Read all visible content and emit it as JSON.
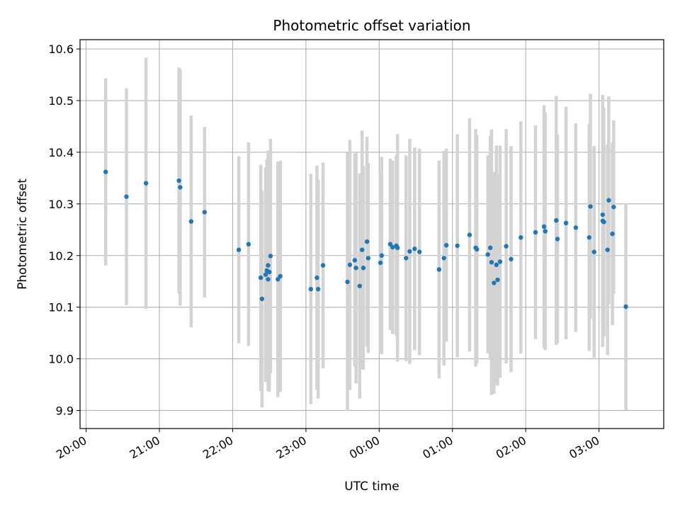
{
  "chart_data": {
    "type": "scatter",
    "title": "Photometric offset variation",
    "xlabel": "UTC time",
    "ylabel": "Photometric offset",
    "x_axis_type": "time",
    "xlim": [
      "2000-01-01T19:55",
      "2000-01-02T03:53"
    ],
    "ylim": [
      9.865,
      10.618
    ],
    "x_ticks": [
      "20:00",
      "21:00",
      "22:00",
      "23:00",
      "00:00",
      "01:00",
      "02:00",
      "03:00"
    ],
    "y_ticks": [
      "9.9",
      "10.0",
      "10.1",
      "10.2",
      "10.3",
      "10.4",
      "10.5",
      "10.6"
    ],
    "grid": true,
    "colors": {
      "points": "#1f77b4",
      "errorbars": "#d3d3d3",
      "grid": "#b0b0b0"
    },
    "series": [
      {
        "x": [
          "20:16",
          "20:33",
          "20:49",
          "21:16",
          "21:17",
          "21:26",
          "21:37",
          "22:05",
          "22:13",
          "22:23",
          "22:24",
          "22:27",
          "22:28",
          "22:29",
          "22:29",
          "22:30",
          "22:31",
          "22:37",
          "22:39",
          "23:04",
          "23:09",
          "23:10",
          "23:14",
          "23:34",
          "23:36",
          "23:40",
          "23:41",
          "23:44",
          "23:46",
          "23:47",
          "23:50",
          "23:51",
          "24:01",
          "24:02",
          "24:09",
          "24:11",
          "24:14",
          "24:15",
          "24:22",
          "24:25",
          "24:29",
          "24:33",
          "24:49",
          "24:53",
          "24:55",
          "25:04",
          "25:14",
          "25:19",
          "25:20",
          "25:29",
          "25:31",
          "25:32",
          "25:34",
          "25:36",
          "25:37",
          "25:39",
          "25:44",
          "25:48",
          "25:56",
          "26:08",
          "26:15",
          "26:16",
          "26:25",
          "26:26",
          "26:33",
          "26:41",
          "26:52",
          "26:53",
          "26:56",
          "27:03",
          "27:03",
          "27:04",
          "27:07",
          "27:08",
          "27:11",
          "27:12",
          "27:22"
        ],
        "y": [
          10.362,
          10.314,
          10.34,
          10.345,
          10.332,
          10.266,
          10.284,
          10.211,
          10.222,
          10.157,
          10.116,
          10.163,
          10.171,
          10.181,
          10.154,
          10.168,
          10.199,
          10.154,
          10.16,
          10.135,
          10.157,
          10.135,
          10.181,
          10.149,
          10.182,
          10.191,
          10.176,
          10.141,
          10.211,
          10.176,
          10.227,
          10.195,
          10.186,
          10.2,
          10.222,
          10.216,
          10.219,
          10.215,
          10.195,
          10.208,
          10.213,
          10.207,
          10.173,
          10.195,
          10.22,
          10.219,
          10.24,
          10.215,
          10.212,
          10.202,
          10.215,
          10.187,
          10.147,
          10.182,
          10.153,
          10.188,
          10.218,
          10.193,
          10.235,
          10.245,
          10.256,
          10.247,
          10.268,
          10.232,
          10.263,
          10.254,
          10.235,
          10.295,
          10.207,
          10.279,
          10.267,
          10.265,
          10.211,
          10.307,
          10.242,
          10.294,
          10.101
        ],
        "yerr": [
          0.181,
          0.21,
          0.243,
          0.219,
          0.229,
          0.205,
          0.165,
          0.181,
          0.197,
          0.219,
          0.21,
          0.208,
          0.215,
          0.222,
          0.216,
          0.232,
          0.227,
          0.228,
          0.224,
          0.223,
          0.217,
          0.212,
          0.199,
          0.25,
          0.242,
          0.206,
          0.224,
          0.218,
          0.231,
          0.197,
          0.203,
          0.184,
          0.173,
          0.191,
          0.166,
          0.168,
          0.175,
          0.22,
          0.199,
          0.218,
          0.196,
          0.2,
          0.211,
          0.208,
          0.187,
          0.216,
          0.226,
          0.23,
          0.221,
          0.192,
          0.217,
          0.257,
          0.215,
          0.231,
          0.205,
          0.225,
          0.227,
          0.219,
          0.225,
          0.207,
          0.235,
          0.23,
          0.241,
          0.202,
          0.225,
          0.202,
          0.22,
          0.218,
          0.205,
          0.21,
          0.244,
          0.222,
          0.204,
          0.201,
          0.177,
          0.168,
          0.2
        ]
      }
    ]
  }
}
